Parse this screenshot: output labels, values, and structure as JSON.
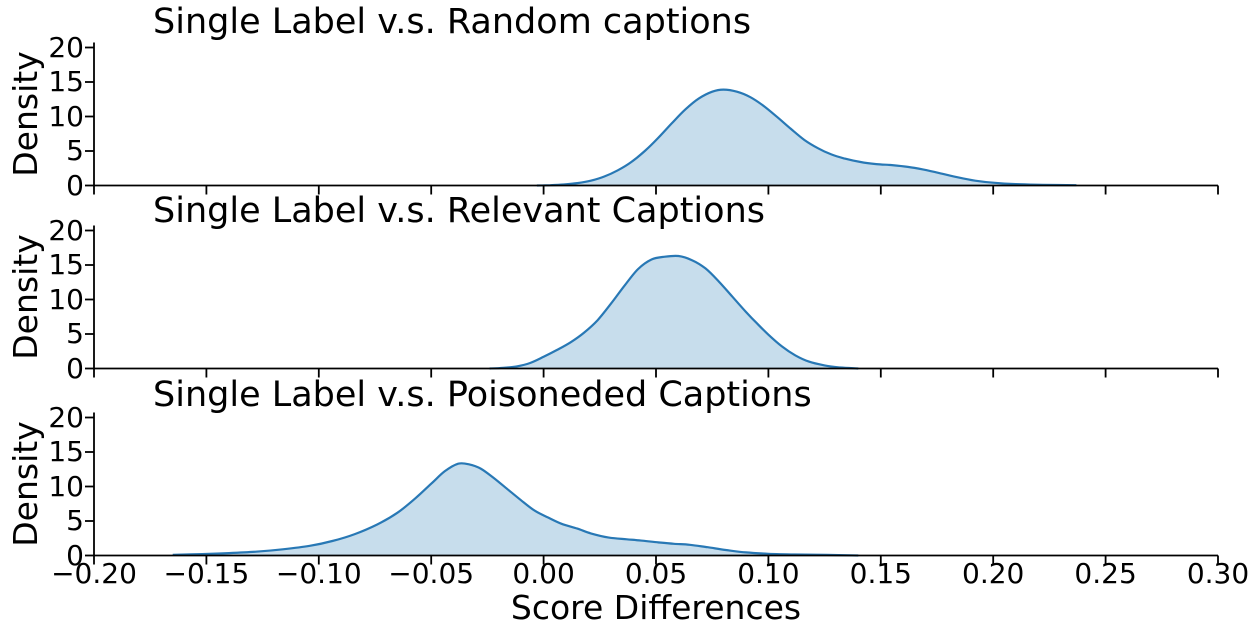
{
  "figure": {
    "xlabel": "Score Differences",
    "ylabel": "Density",
    "x_tick_labels": [
      "−0.20",
      "−0.15",
      "−0.10",
      "−0.05",
      "0.00",
      "0.05",
      "0.10",
      "0.15",
      "0.20",
      "0.25",
      "0.30"
    ],
    "x_tick_values": [
      -0.2,
      -0.15,
      -0.1,
      -0.05,
      0.0,
      0.05,
      0.1,
      0.15,
      0.2,
      0.25,
      0.3
    ],
    "y_tick_labels": [
      "0",
      "5",
      "10",
      "15",
      "20"
    ],
    "y_tick_values": [
      0,
      5,
      10,
      15,
      20
    ],
    "colors": {
      "line": "#2878b5",
      "fill": "rgba(31,119,180,0.25)",
      "axis": "#000000",
      "text": "#000000",
      "background": "#ffffff"
    }
  },
  "chart_data": [
    {
      "type": "area",
      "kind": "kde-density",
      "title": "Single Label v.s. Random captions",
      "ylabel": "Density",
      "xlim": [
        -0.2,
        0.3
      ],
      "ylim": [
        0,
        20
      ],
      "peak": {
        "x": 0.08,
        "density": 13.9
      },
      "points": [
        [
          -0.003,
          0.0
        ],
        [
          0.003,
          0.05
        ],
        [
          0.009,
          0.15
        ],
        [
          0.015,
          0.35
        ],
        [
          0.021,
          0.7
        ],
        [
          0.027,
          1.3
        ],
        [
          0.033,
          2.2
        ],
        [
          0.039,
          3.4
        ],
        [
          0.045,
          5.0
        ],
        [
          0.051,
          6.9
        ],
        [
          0.057,
          9.0
        ],
        [
          0.063,
          11.0
        ],
        [
          0.069,
          12.6
        ],
        [
          0.075,
          13.6
        ],
        [
          0.08,
          13.9
        ],
        [
          0.086,
          13.6
        ],
        [
          0.092,
          12.8
        ],
        [
          0.098,
          11.5
        ],
        [
          0.104,
          9.9
        ],
        [
          0.11,
          8.2
        ],
        [
          0.116,
          6.6
        ],
        [
          0.122,
          5.4
        ],
        [
          0.128,
          4.5
        ],
        [
          0.134,
          3.9
        ],
        [
          0.141,
          3.4
        ],
        [
          0.148,
          3.1
        ],
        [
          0.155,
          2.95
        ],
        [
          0.162,
          2.7
        ],
        [
          0.169,
          2.3
        ],
        [
          0.176,
          1.8
        ],
        [
          0.184,
          1.2
        ],
        [
          0.192,
          0.7
        ],
        [
          0.2,
          0.4
        ],
        [
          0.21,
          0.2
        ],
        [
          0.222,
          0.1
        ],
        [
          0.237,
          0.05
        ]
      ]
    },
    {
      "type": "area",
      "kind": "kde-density",
      "title": "Single Label v.s. Relevant Captions",
      "ylabel": "Density",
      "xlim": [
        -0.2,
        0.3
      ],
      "ylim": [
        0,
        20
      ],
      "peak": {
        "x": 0.057,
        "density": 16.3
      },
      "points": [
        [
          -0.024,
          0.0
        ],
        [
          -0.018,
          0.1
        ],
        [
          -0.012,
          0.3
        ],
        [
          -0.006,
          0.8
        ],
        [
          0.0,
          1.7
        ],
        [
          0.006,
          2.7
        ],
        [
          0.012,
          3.8
        ],
        [
          0.018,
          5.2
        ],
        [
          0.024,
          7.0
        ],
        [
          0.03,
          9.4
        ],
        [
          0.036,
          12.0
        ],
        [
          0.042,
          14.4
        ],
        [
          0.048,
          15.8
        ],
        [
          0.054,
          16.2
        ],
        [
          0.06,
          16.3
        ],
        [
          0.066,
          15.7
        ],
        [
          0.072,
          14.5
        ],
        [
          0.078,
          12.6
        ],
        [
          0.084,
          10.4
        ],
        [
          0.09,
          8.2
        ],
        [
          0.095,
          6.5
        ],
        [
          0.1,
          4.9
        ],
        [
          0.106,
          3.2
        ],
        [
          0.112,
          1.9
        ],
        [
          0.118,
          1.0
        ],
        [
          0.125,
          0.45
        ],
        [
          0.132,
          0.15
        ],
        [
          0.14,
          0.0
        ]
      ]
    },
    {
      "type": "area",
      "kind": "kde-density",
      "title": "Single Label v.s. Poisoneded Captions",
      "xlabel": "Score Differences",
      "ylabel": "Density",
      "xlim": [
        -0.2,
        0.3
      ],
      "ylim": [
        0,
        20
      ],
      "peak": {
        "x": -0.04,
        "density": 13.3
      },
      "points": [
        [
          -0.165,
          0.1
        ],
        [
          -0.152,
          0.2
        ],
        [
          -0.14,
          0.35
        ],
        [
          -0.128,
          0.55
        ],
        [
          -0.116,
          0.9
        ],
        [
          -0.104,
          1.4
        ],
        [
          -0.094,
          2.1
        ],
        [
          -0.084,
          3.1
        ],
        [
          -0.074,
          4.5
        ],
        [
          -0.065,
          6.2
        ],
        [
          -0.057,
          8.3
        ],
        [
          -0.05,
          10.4
        ],
        [
          -0.044,
          12.2
        ],
        [
          -0.038,
          13.3
        ],
        [
          -0.033,
          13.2
        ],
        [
          -0.028,
          12.6
        ],
        [
          -0.022,
          11.2
        ],
        [
          -0.016,
          9.6
        ],
        [
          -0.01,
          8.0
        ],
        [
          -0.004,
          6.5
        ],
        [
          0.002,
          5.5
        ],
        [
          0.008,
          4.6
        ],
        [
          0.015,
          3.9
        ],
        [
          0.021,
          3.2
        ],
        [
          0.029,
          2.6
        ],
        [
          0.037,
          2.35
        ],
        [
          0.044,
          2.15
        ],
        [
          0.051,
          1.9
        ],
        [
          0.058,
          1.7
        ],
        [
          0.065,
          1.55
        ],
        [
          0.073,
          1.2
        ],
        [
          0.081,
          0.8
        ],
        [
          0.09,
          0.45
        ],
        [
          0.1,
          0.25
        ],
        [
          0.112,
          0.15
        ],
        [
          0.126,
          0.08
        ],
        [
          0.14,
          0.0
        ]
      ]
    }
  ]
}
